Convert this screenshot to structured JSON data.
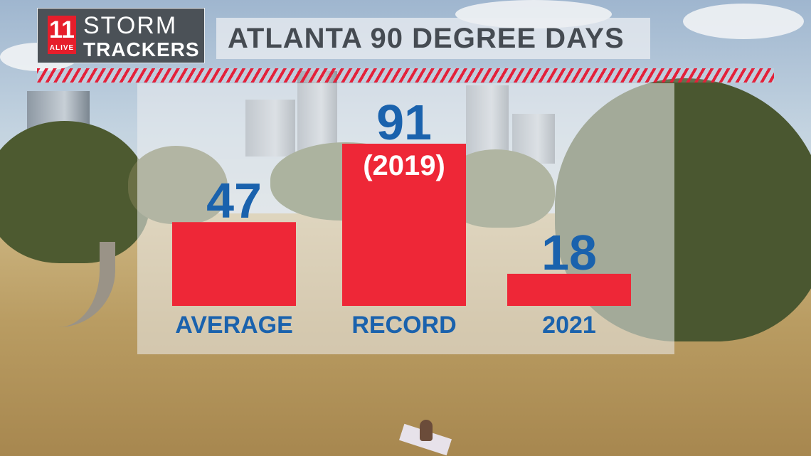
{
  "header": {
    "logo_number": "11",
    "logo_sub": "ALIVE",
    "logo_line1": "STORM",
    "logo_line2": "TRACKERS",
    "title": "ATLANTA 90 DEGREE DAYS"
  },
  "colors": {
    "bar": "#ee2737",
    "value_text": "#1a62ad",
    "stripe": "#e4213a"
  },
  "chart_data": {
    "type": "bar",
    "title": "ATLANTA 90 DEGREE DAYS",
    "categories": [
      "AVERAGE",
      "RECORD",
      "2021"
    ],
    "values": [
      47,
      91,
      18
    ],
    "value_labels": [
      "47",
      "91",
      "18"
    ],
    "annotations": [
      {
        "category": "RECORD",
        "text": "(2019)"
      }
    ],
    "xlabel": "",
    "ylabel": "",
    "ylim": [
      0,
      91
    ],
    "grid": false,
    "legend": "none"
  }
}
